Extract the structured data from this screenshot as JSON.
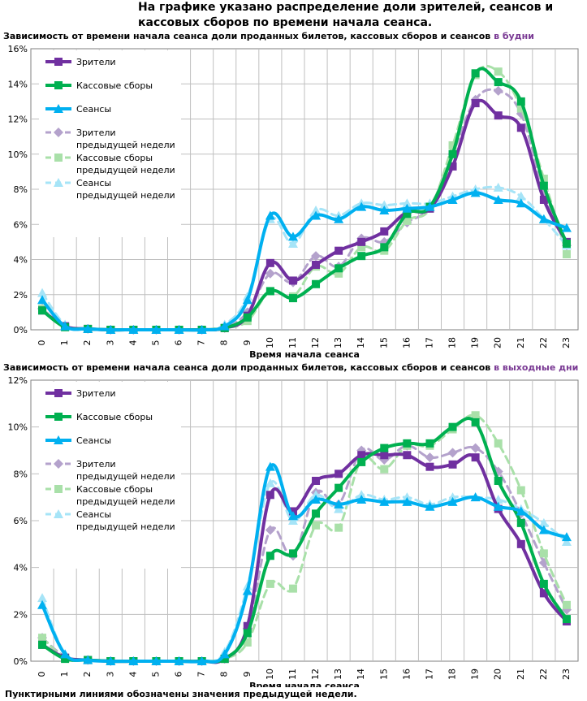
{
  "header": "На графике указано распределение доли зрителей, сеансов и кассовых сборов по времени начала сеанса.",
  "footnote": "Пунктирными линиями обозначены значения предыдущей недели.",
  "colors": {
    "viewers": "#7030a0",
    "boxoffice": "#00b050",
    "sessions": "#00b0f0",
    "viewers_prev": "#b4a2cc",
    "boxoffice_prev": "#a9e0a9",
    "sessions_prev": "#a6e4f7"
  },
  "chart_data": [
    {
      "type": "line",
      "title_prefix": "Зависимость от времени начала сеанса доли проданных билетов, кассовых сборов и сеансов ",
      "title_accent": "в будни",
      "xlabel": "Время начала сеанса",
      "ylabel": "",
      "ylim": [
        0,
        16
      ],
      "y_ticks": [
        "0%",
        "2%",
        "4%",
        "6%",
        "8%",
        "10%",
        "12%",
        "14%",
        "16%"
      ],
      "categories": [
        "0",
        "1",
        "2",
        "3",
        "4",
        "5",
        "6",
        "7",
        "8",
        "9",
        "10",
        "11",
        "12",
        "13",
        "14",
        "15",
        "16",
        "17",
        "18",
        "19",
        "20",
        "21",
        "22",
        "23"
      ],
      "grid": true,
      "legend_position": "top-left",
      "series": [
        {
          "name": "Зрители",
          "style": "solid",
          "color": "#7030a0",
          "marker": "square",
          "values": [
            1.1,
            0.2,
            0.05,
            0,
            0,
            0,
            0,
            0,
            0.1,
            0.8,
            3.8,
            2.8,
            3.7,
            4.5,
            5.0,
            5.6,
            6.7,
            6.9,
            9.3,
            12.9,
            12.2,
            11.5,
            7.4,
            5.0
          ]
        },
        {
          "name": "Кассовые сборы",
          "style": "solid",
          "color": "#00b050",
          "marker": "square",
          "values": [
            1.1,
            0.15,
            0.05,
            0,
            0,
            0,
            0,
            0,
            0.1,
            0.7,
            2.2,
            1.8,
            2.6,
            3.5,
            4.2,
            4.7,
            6.6,
            7.0,
            10.0,
            14.6,
            14.1,
            13.0,
            8.2,
            4.9
          ]
        },
        {
          "name": "Сеансы",
          "style": "solid",
          "color": "#00b0f0",
          "marker": "triangle",
          "values": [
            1.7,
            0.2,
            0.05,
            0,
            0,
            0,
            0,
            0,
            0.2,
            1.7,
            6.5,
            5.3,
            6.5,
            6.3,
            7.0,
            6.8,
            6.9,
            7.0,
            7.4,
            7.8,
            7.4,
            7.2,
            6.3,
            5.8
          ]
        },
        {
          "name": "Зрители предыдущей недели",
          "style": "dashed",
          "color": "#b4a2cc",
          "marker": "diamond",
          "values": [
            1.2,
            0.2,
            0.05,
            0,
            0,
            0,
            0,
            0,
            0.1,
            1.0,
            3.2,
            2.7,
            4.2,
            3.6,
            5.2,
            5.0,
            6.1,
            7.0,
            10.0,
            13.1,
            13.6,
            12.3,
            7.9,
            4.8
          ]
        },
        {
          "name": "Кассовые сборы предыдущей недели",
          "style": "dashed",
          "color": "#a9e0a9",
          "marker": "square",
          "values": [
            1.2,
            0.15,
            0.05,
            0,
            0,
            0,
            0,
            0,
            0.1,
            0.5,
            2.2,
            1.9,
            3.6,
            3.2,
            4.7,
            4.5,
            6.2,
            6.9,
            10.5,
            14.5,
            14.7,
            12.6,
            8.6,
            4.3
          ]
        },
        {
          "name": "Сеансы предыдущей недели",
          "style": "dashed",
          "color": "#a6e4f7",
          "marker": "triangle",
          "values": [
            2.1,
            0.3,
            0.05,
            0,
            0,
            0,
            0,
            0,
            0.3,
            1.9,
            6.3,
            4.9,
            6.8,
            6.5,
            7.2,
            7.1,
            7.2,
            7.2,
            7.6,
            8.0,
            8.1,
            7.6,
            6.3,
            4.8
          ]
        }
      ],
      "legend_lines": [
        [
          "Зрители"
        ],
        [
          "Кассовые сборы"
        ],
        [
          "Сеансы"
        ],
        [
          "Зрители",
          "предыдущей недели"
        ],
        [
          "Кассовые сборы",
          "предыдущей недели"
        ],
        [
          "Сеансы",
          "предыдущей недели"
        ]
      ]
    },
    {
      "type": "line",
      "title_prefix": "Зависимость от времени начала сеанса доли проданных билетов, кассовых сборов и сеансов ",
      "title_accent": "в выходные дни",
      "xlabel": "Время начала сеанса",
      "ylabel": "",
      "ylim": [
        0,
        12
      ],
      "y_ticks": [
        "0%",
        "2%",
        "4%",
        "6%",
        "8%",
        "10%",
        "12%"
      ],
      "categories": [
        "0",
        "1",
        "2",
        "3",
        "4",
        "5",
        "6",
        "7",
        "8",
        "9",
        "10",
        "11",
        "12",
        "13",
        "14",
        "15",
        "16",
        "17",
        "18",
        "19",
        "20",
        "21",
        "22",
        "23"
      ],
      "grid": true,
      "legend_position": "top-left",
      "series": [
        {
          "name": "Зрители",
          "style": "solid",
          "color": "#7030a0",
          "marker": "square",
          "values": [
            0.7,
            0.15,
            0.05,
            0,
            0,
            0,
            0,
            0,
            0.1,
            1.5,
            7.1,
            6.4,
            7.7,
            8.0,
            8.8,
            8.8,
            8.8,
            8.3,
            8.4,
            8.7,
            6.5,
            5.0,
            2.9,
            1.7
          ]
        },
        {
          "name": "Кассовые сборы",
          "style": "solid",
          "color": "#00b050",
          "marker": "square",
          "values": [
            0.7,
            0.1,
            0.05,
            0,
            0,
            0,
            0,
            0,
            0.1,
            1.2,
            4.5,
            4.6,
            6.3,
            7.4,
            8.5,
            9.1,
            9.3,
            9.3,
            10.0,
            10.2,
            7.7,
            5.9,
            3.3,
            1.8
          ]
        },
        {
          "name": "Сеансы",
          "style": "solid",
          "color": "#00b0f0",
          "marker": "triangle",
          "values": [
            2.4,
            0.3,
            0.05,
            0,
            0,
            0,
            0,
            0,
            0.3,
            3.0,
            8.3,
            6.2,
            6.9,
            6.7,
            6.9,
            6.8,
            6.8,
            6.6,
            6.8,
            7.0,
            6.6,
            6.4,
            5.6,
            5.3
          ]
        },
        {
          "name": "Зрители предыдущей недели",
          "style": "dashed",
          "color": "#b4a2cc",
          "marker": "diamond",
          "values": [
            1.0,
            0.2,
            0.05,
            0,
            0,
            0,
            0,
            0,
            0.1,
            1.4,
            5.6,
            4.5,
            7.2,
            6.7,
            9.0,
            8.6,
            9.2,
            8.7,
            8.9,
            9.1,
            8.1,
            6.3,
            4.2,
            2.2
          ]
        },
        {
          "name": "Кассовые сборы предыдущей недели",
          "style": "dashed",
          "color": "#a9e0a9",
          "marker": "square",
          "values": [
            1.0,
            0.15,
            0.05,
            0,
            0,
            0,
            0,
            0,
            0.1,
            0.8,
            3.3,
            3.1,
            5.8,
            5.7,
            8.6,
            8.2,
            9.2,
            9.2,
            9.9,
            10.5,
            9.3,
            7.3,
            4.6,
            2.4
          ]
        },
        {
          "name": "Сеансы предыдущей недели",
          "style": "dashed",
          "color": "#a6e4f7",
          "marker": "triangle",
          "values": [
            2.7,
            0.3,
            0.05,
            0,
            0,
            0,
            0,
            0,
            0.4,
            3.2,
            7.6,
            6.0,
            7.1,
            6.5,
            7.1,
            6.9,
            7.0,
            6.7,
            7.0,
            7.0,
            6.9,
            6.5,
            5.9,
            5.1
          ]
        }
      ],
      "legend_lines": [
        [
          "Зрители"
        ],
        [
          "Кассовые сборы"
        ],
        [
          "Сеансы"
        ],
        [
          "Зрители",
          "предыдущей недели"
        ],
        [
          "Кассовые сборы",
          "предыдущей недели"
        ],
        [
          "Сеансы",
          "предыдущей недели"
        ]
      ]
    }
  ]
}
